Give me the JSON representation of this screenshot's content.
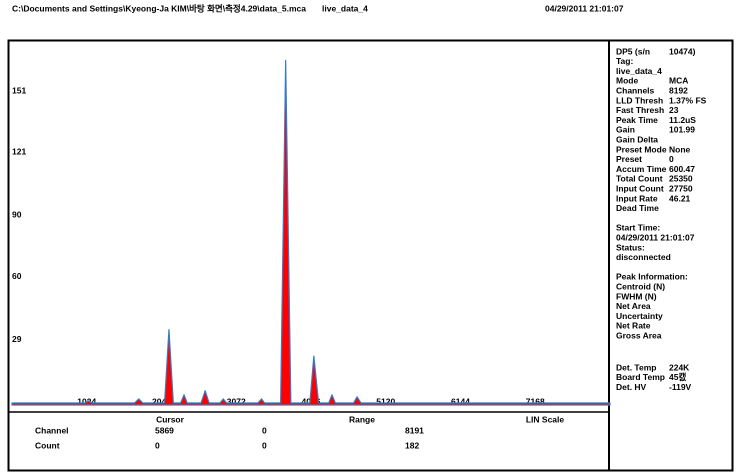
{
  "header": {
    "path": "C:\\Documents and Settings\\Kyeong-Ja KIM\\바탕 화면\\측정4.29\\data_5.mca",
    "name": "live_data_4",
    "datetime": "04/29/2011 21:01:07"
  },
  "chart_data": {
    "type": "area",
    "x": [
      0,
      1000,
      1047,
      1100,
      1680,
      1737,
      1790,
      2090,
      2150,
      2210,
      2310,
      2357,
      2400,
      2590,
      2646,
      2700,
      2850,
      2894,
      2940,
      3370,
      3418,
      3460,
      3680,
      3749,
      3820,
      4080,
      4135,
      4200,
      4340,
      4383,
      4430,
      4680,
      4727,
      4780,
      5500,
      8192
    ],
    "values": [
      1,
      1,
      2,
      1,
      1,
      3,
      1,
      1,
      37,
      1,
      1,
      5,
      1,
      1,
      7,
      1,
      1,
      3,
      1,
      1,
      3,
      1,
      1,
      169,
      1,
      1,
      24,
      1,
      1,
      5,
      1,
      1,
      4,
      1,
      1,
      1
    ],
    "color": "#ff0000",
    "outline": "#3a78c8",
    "xlim": [
      0,
      8192
    ],
    "xticks": [
      1024,
      2048,
      3072,
      4096,
      5120,
      6144,
      7168
    ],
    "ylim": [
      0,
      179
    ],
    "yticks": [
      29,
      60,
      90,
      121,
      151
    ]
  },
  "info": {
    "groups": [
      [
        [
          "DP5 (s/n",
          "10474)"
        ],
        [
          "Tag:"
        ],
        [
          "live_data_4"
        ],
        [
          "Mode",
          "MCA"
        ],
        [
          "Channels",
          "8192"
        ],
        [
          "LLD Thresh",
          "1.37% FS"
        ],
        [
          "Fast Thresh",
          "23"
        ],
        [
          "Peak Time",
          "11.2uS"
        ],
        [
          "Gain",
          "101.99"
        ],
        [
          "Gain Delta"
        ],
        [
          "Preset Mode",
          "None"
        ],
        [
          "Preset",
          "0"
        ],
        [
          "Accum Time",
          "600.47"
        ],
        [
          "Total Count",
          "25350"
        ],
        [
          "Input Count",
          "27750"
        ],
        [
          "Input Rate",
          "46.21"
        ],
        [
          "Dead Time"
        ]
      ],
      [
        [
          "Start Time:"
        ],
        [
          "04/29/2011 21:01:07"
        ],
        [
          "Status:"
        ],
        [
          "disconnected"
        ]
      ],
      [
        [
          "Peak Information:"
        ],
        [
          "Centroid (N)"
        ],
        [
          "FWHM (N)"
        ],
        [
          "Net Area"
        ],
        [
          "Uncertainty"
        ],
        [
          "Net Rate"
        ],
        [
          "Gross Area"
        ]
      ],
      [
        [
          "Det. Temp",
          "224K"
        ],
        [
          "Board Temp",
          "45캜"
        ],
        [
          "Det. HV",
          "-119V"
        ]
      ]
    ]
  },
  "table": {
    "headers": [
      "Cursor",
      "Range",
      "LIN Scale"
    ],
    "rows": [
      [
        "Channel",
        "5869",
        "0",
        "8191"
      ],
      [
        "Count",
        "0",
        "0",
        "182"
      ]
    ]
  }
}
